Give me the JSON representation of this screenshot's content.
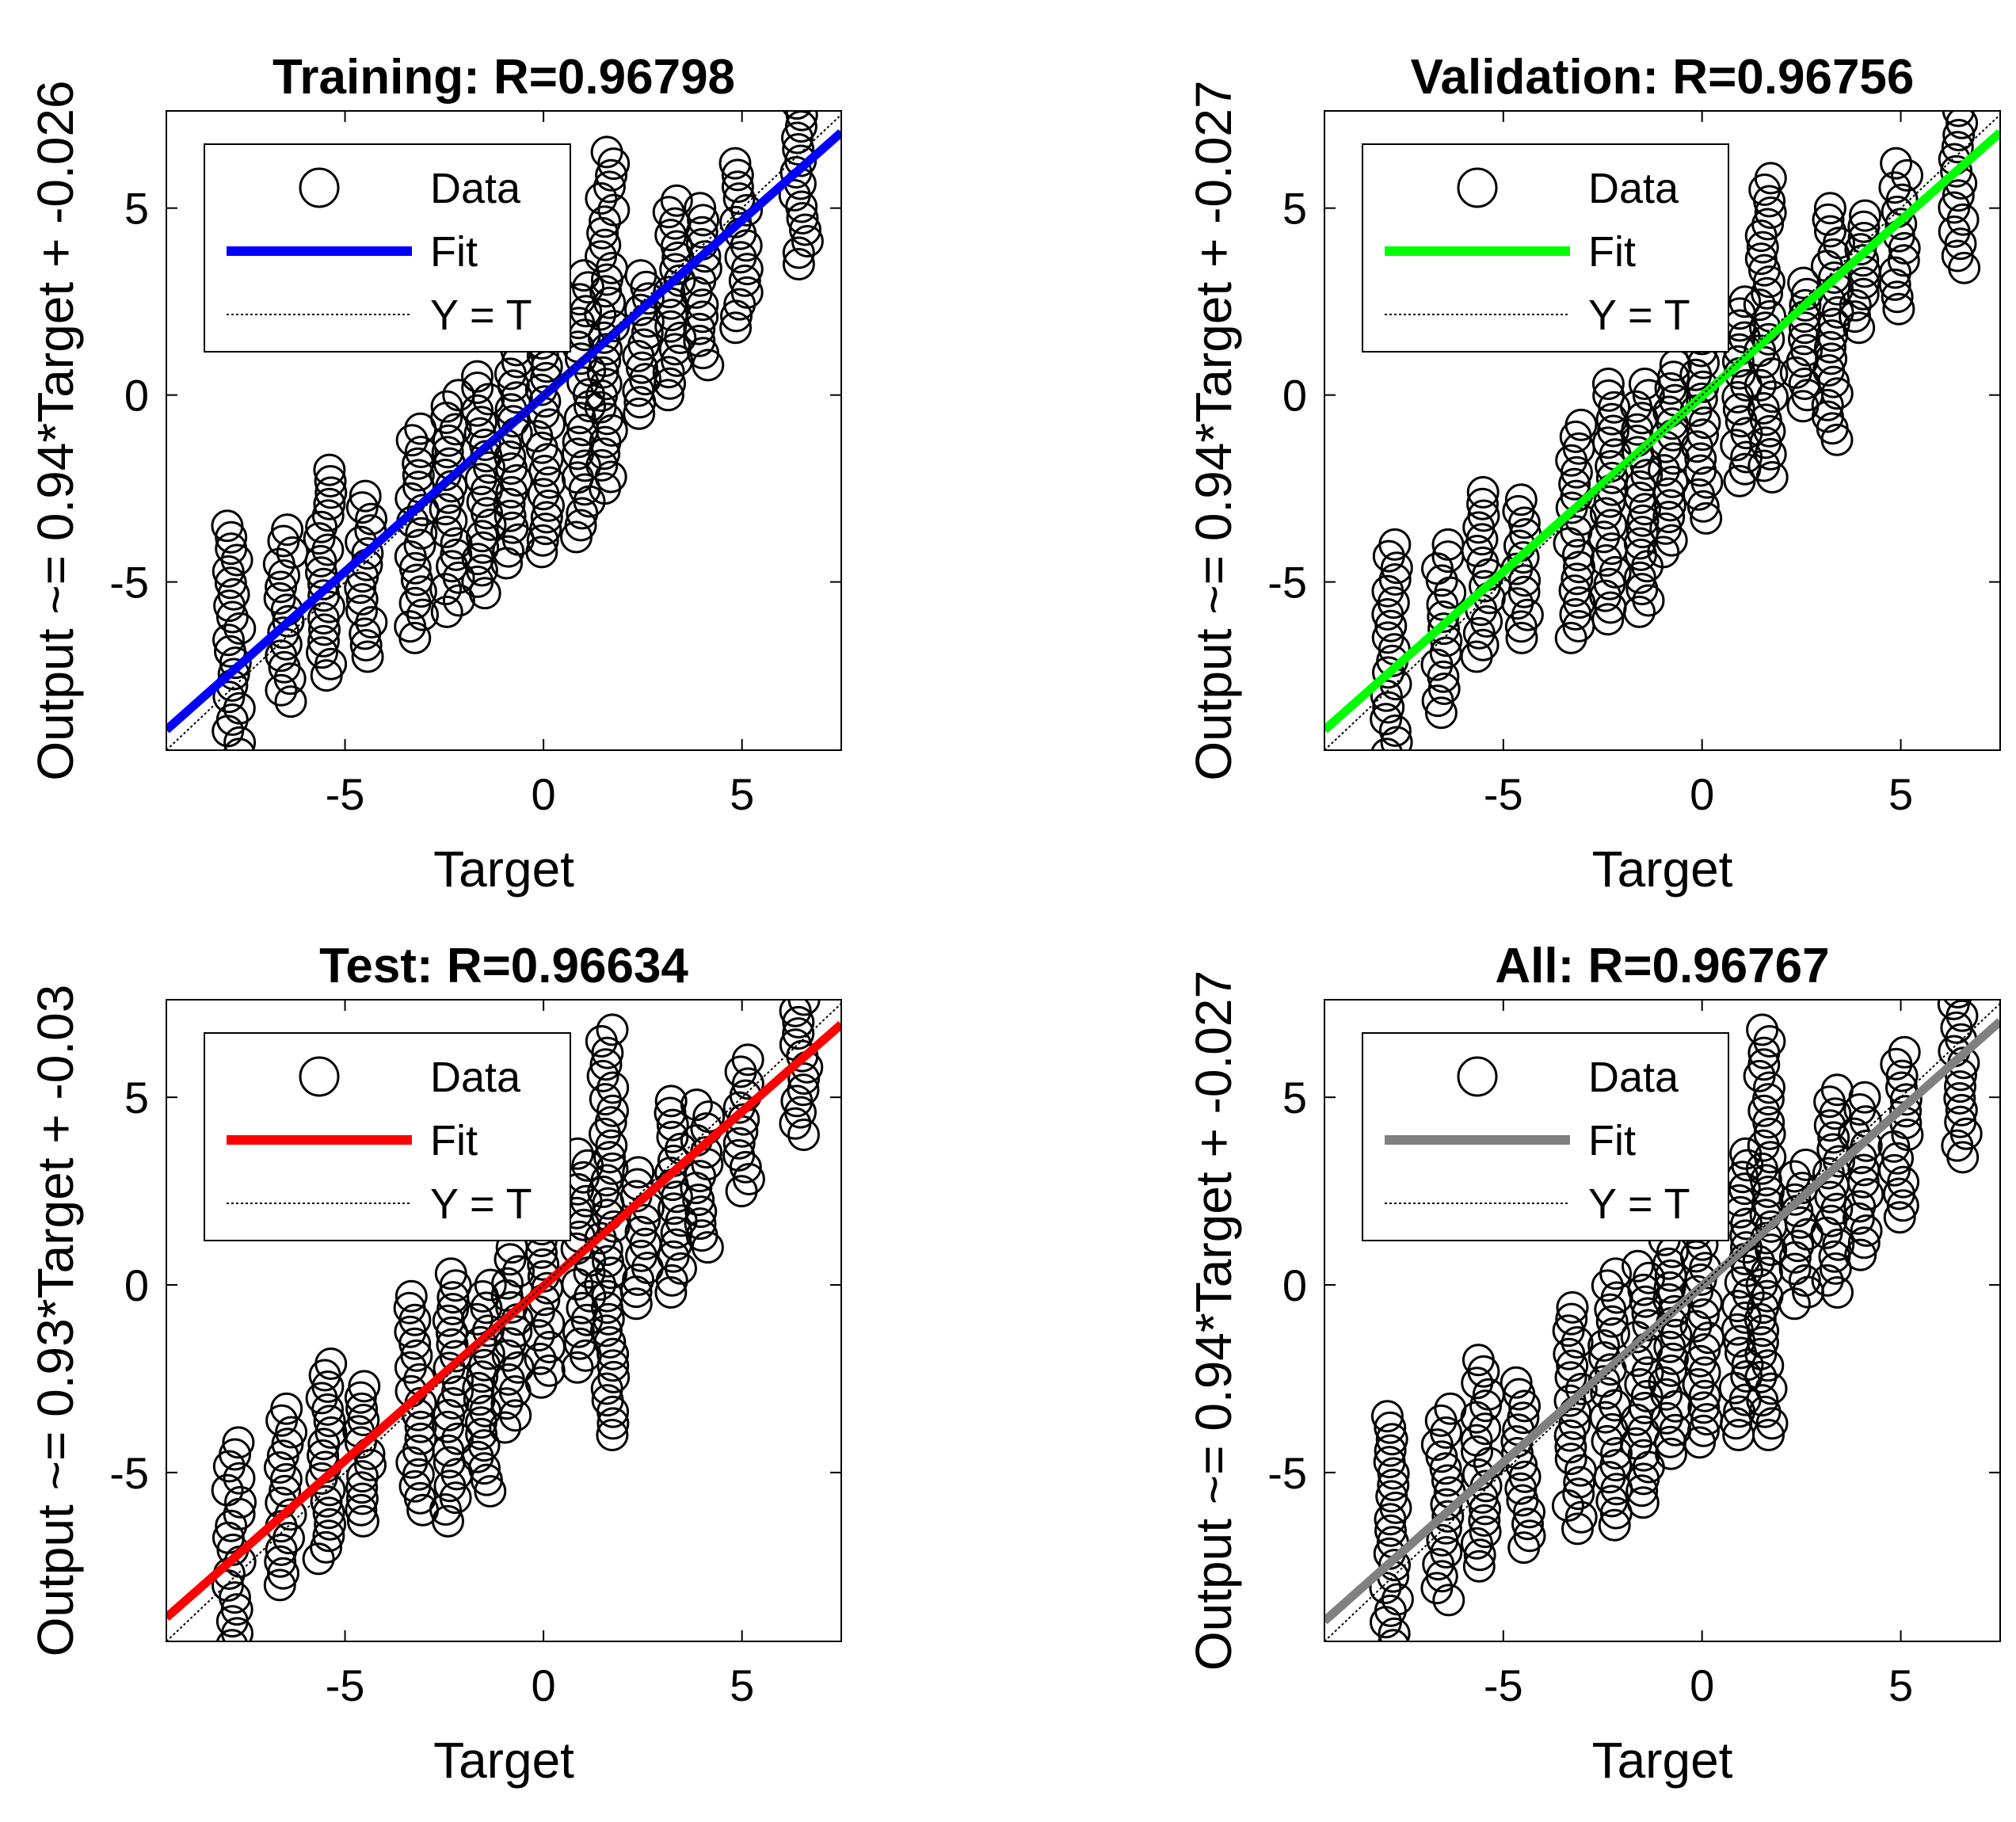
{
  "colors": {
    "data_marker": "#000000",
    "identity_line": "#000000",
    "axes": "#000000"
  },
  "chart_data": [
    {
      "type": "scatter",
      "title": "Training: R=0.96798",
      "xlabel": "Target",
      "ylabel": "Output ~= 0.94*Target + -0.026",
      "xlim": [
        -9.5,
        7.5
      ],
      "ylim": [
        -9.5,
        7.6
      ],
      "xticks": [
        -5,
        0,
        5
      ],
      "yticks": [
        -5,
        0,
        5
      ],
      "fit": {
        "slope": 0.94,
        "intercept": -0.026,
        "color": "#0000ff"
      },
      "legend": {
        "placement": "top-left",
        "entries": [
          "Data",
          "Fit",
          "Y = T"
        ]
      },
      "targets": [
        -7.8,
        -6.5,
        -5.5,
        -4.5,
        -3.2,
        -2.3,
        -1.5,
        -0.8,
        0,
        1.0,
        1.6,
        2.5,
        3.3,
        4.0,
        5.0,
        6.5
      ],
      "output_ranges": [
        [
          -9.6,
          -3.5
        ],
        [
          -8.2,
          -3.6
        ],
        [
          -7.5,
          -2.0
        ],
        [
          -7.0,
          -2.7
        ],
        [
          -6.5,
          -0.9
        ],
        [
          -5.8,
          0.0
        ],
        [
          -5.3,
          0.5
        ],
        [
          -4.5,
          1.2
        ],
        [
          -4.2,
          2.0
        ],
        [
          -3.8,
          3.2
        ],
        [
          -2.5,
          6.5
        ],
        [
          -0.5,
          3.2
        ],
        [
          0.0,
          5.2
        ],
        [
          0.8,
          5.0
        ],
        [
          1.8,
          6.2
        ],
        [
          3.5,
          7.8
        ]
      ]
    },
    {
      "type": "scatter",
      "title": "Validation: R=0.96756",
      "xlabel": "Target",
      "ylabel": "Output ~= 0.94*Target + -0.027",
      "xlim": [
        -9.5,
        7.5
      ],
      "ylim": [
        -9.5,
        7.6
      ],
      "xticks": [
        -5,
        0,
        5
      ],
      "yticks": [
        -5,
        0,
        5
      ],
      "fit": {
        "slope": 0.94,
        "intercept": -0.027,
        "color": "#00ff00"
      },
      "legend": {
        "placement": "top-left",
        "entries": [
          "Data",
          "Fit",
          "Y = T"
        ]
      },
      "targets": [
        -7.8,
        -6.5,
        -5.5,
        -4.5,
        -3.2,
        -2.3,
        -1.5,
        -0.8,
        0,
        1.0,
        1.6,
        2.5,
        3.3,
        4.0,
        5.0,
        6.5
      ],
      "output_ranges": [
        [
          -9.6,
          -4.0
        ],
        [
          -8.5,
          -4.0
        ],
        [
          -7.0,
          -2.6
        ],
        [
          -6.5,
          -2.8
        ],
        [
          -6.5,
          -0.8
        ],
        [
          -6.0,
          0.3
        ],
        [
          -5.8,
          0.3
        ],
        [
          -4.2,
          0.8
        ],
        [
          -3.3,
          1.5
        ],
        [
          -2.3,
          2.5
        ],
        [
          -2.2,
          5.8
        ],
        [
          -0.3,
          3.0
        ],
        [
          -1.2,
          5.0
        ],
        [
          1.8,
          4.8
        ],
        [
          2.3,
          6.2
        ],
        [
          3.4,
          7.6
        ]
      ]
    },
    {
      "type": "scatter",
      "title": "Test: R=0.96634",
      "xlabel": "Target",
      "ylabel": "Output ~= 0.93*Target + -0.03",
      "xlim": [
        -9.5,
        7.5
      ],
      "ylim": [
        -9.5,
        7.6
      ],
      "xticks": [
        -5,
        0,
        5
      ],
      "yticks": [
        -5,
        0,
        5
      ],
      "fit": {
        "slope": 0.93,
        "intercept": -0.03,
        "color": "#ff0000"
      },
      "legend": {
        "placement": "top-left",
        "entries": [
          "Data",
          "Fit",
          "Y = T"
        ]
      },
      "targets": [
        -7.8,
        -6.5,
        -5.5,
        -4.5,
        -3.2,
        -2.3,
        -1.5,
        -0.8,
        0,
        1.0,
        1.6,
        2.5,
        3.3,
        4.0,
        5.0,
        6.5
      ],
      "output_ranges": [
        [
          -9.6,
          -4.2
        ],
        [
          -8.0,
          -3.3
        ],
        [
          -7.3,
          -2.1
        ],
        [
          -6.3,
          -2.7
        ],
        [
          -6.0,
          -0.3
        ],
        [
          -6.3,
          0.3
        ],
        [
          -5.5,
          0.0
        ],
        [
          -3.8,
          1.0
        ],
        [
          -2.6,
          1.8
        ],
        [
          -2.2,
          3.5
        ],
        [
          -4.0,
          6.8
        ],
        [
          -0.5,
          3.0
        ],
        [
          -0.2,
          4.9
        ],
        [
          1.0,
          4.8
        ],
        [
          2.5,
          6.0
        ],
        [
          4.0,
          7.6
        ]
      ]
    },
    {
      "type": "scatter",
      "title": "All: R=0.96767",
      "xlabel": "Target",
      "ylabel": "Output ~= 0.94*Target + -0.027",
      "xlim": [
        -9.5,
        7.5
      ],
      "ylim": [
        -9.5,
        7.6
      ],
      "xticks": [
        -5,
        0,
        5
      ],
      "yticks": [
        -5,
        0,
        5
      ],
      "fit": {
        "slope": 0.94,
        "intercept": -0.027,
        "color": "#808080"
      },
      "legend": {
        "placement": "top-left",
        "entries": [
          "Data",
          "Fit",
          "Y = T"
        ]
      },
      "targets": [
        -7.8,
        -6.5,
        -5.5,
        -4.5,
        -3.2,
        -2.3,
        -1.5,
        -0.8,
        0,
        1.0,
        1.6,
        2.5,
        3.3,
        4.0,
        5.0,
        6.5
      ],
      "output_ranges": [
        [
          -9.6,
          -3.5
        ],
        [
          -8.4,
          -3.3
        ],
        [
          -7.5,
          -2.0
        ],
        [
          -7.0,
          -2.6
        ],
        [
          -6.5,
          -0.6
        ],
        [
          -6.4,
          0.3
        ],
        [
          -5.8,
          0.5
        ],
        [
          -4.5,
          1.2
        ],
        [
          -4.2,
          2.0
        ],
        [
          -4.0,
          3.5
        ],
        [
          -4.0,
          6.8
        ],
        [
          -0.5,
          3.2
        ],
        [
          -0.2,
          5.2
        ],
        [
          0.8,
          5.0
        ],
        [
          1.8,
          6.2
        ],
        [
          3.4,
          7.8
        ]
      ]
    }
  ]
}
